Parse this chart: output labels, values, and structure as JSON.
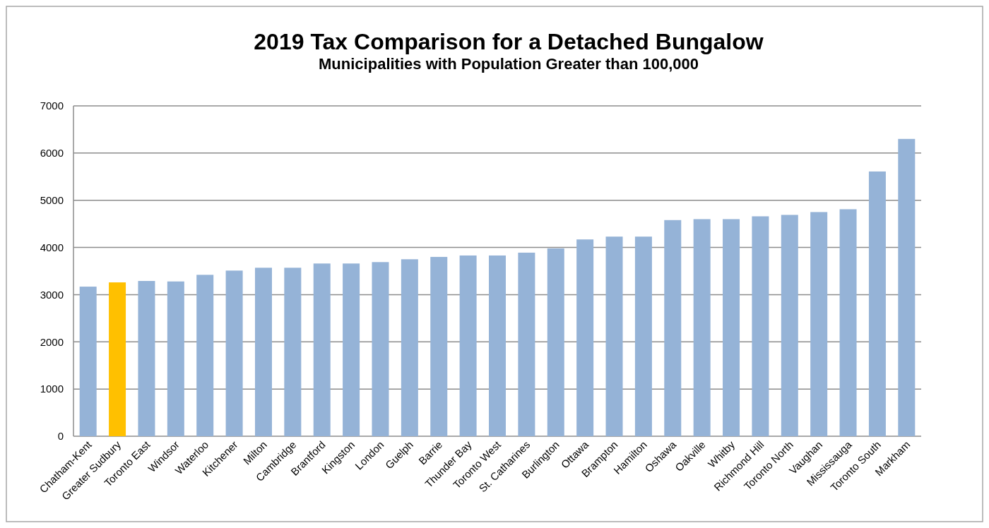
{
  "chart_data": {
    "type": "bar",
    "title": "2019 Tax Comparison for a Detached Bungalow",
    "subtitle": "Municipalities with Population Greater than 100,000",
    "categories": [
      "Chatham-Kent",
      "Greater Sudbury",
      "Toronto East",
      "Windsor",
      "Waterloo",
      "Kitchener",
      "Milton",
      "Cambridge",
      "Brantford",
      "Kingston",
      "London",
      "Guelph",
      "Barrie",
      "Thunder Bay",
      "Toronto West",
      "St. Catharines",
      "Burlington",
      "Ottawa",
      "Brampton",
      "Hamilton",
      "Oshawa",
      "Oakville",
      "Whitby",
      "Richmond Hill",
      "Toronto North",
      "Vaughan",
      "Mississauga",
      "Toronto South",
      "Markham"
    ],
    "values": [
      3170,
      3260,
      3290,
      3280,
      3420,
      3510,
      3570,
      3570,
      3660,
      3660,
      3690,
      3750,
      3800,
      3830,
      3830,
      3890,
      3980,
      4170,
      4230,
      4230,
      4580,
      4600,
      4600,
      4660,
      4690,
      4750,
      4810,
      5610,
      6300
    ],
    "colors": [
      "#95b3d7",
      "#ffc000",
      "#95b3d7",
      "#95b3d7",
      "#95b3d7",
      "#95b3d7",
      "#95b3d7",
      "#95b3d7",
      "#95b3d7",
      "#95b3d7",
      "#95b3d7",
      "#95b3d7",
      "#95b3d7",
      "#95b3d7",
      "#95b3d7",
      "#95b3d7",
      "#95b3d7",
      "#95b3d7",
      "#95b3d7",
      "#95b3d7",
      "#95b3d7",
      "#95b3d7",
      "#95b3d7",
      "#95b3d7",
      "#95b3d7",
      "#95b3d7",
      "#95b3d7",
      "#95b3d7",
      "#95b3d7"
    ],
    "ylim": [
      0,
      7000
    ],
    "yticks": [
      0,
      1000,
      2000,
      3000,
      4000,
      5000,
      6000,
      7000
    ],
    "grid": "y"
  }
}
